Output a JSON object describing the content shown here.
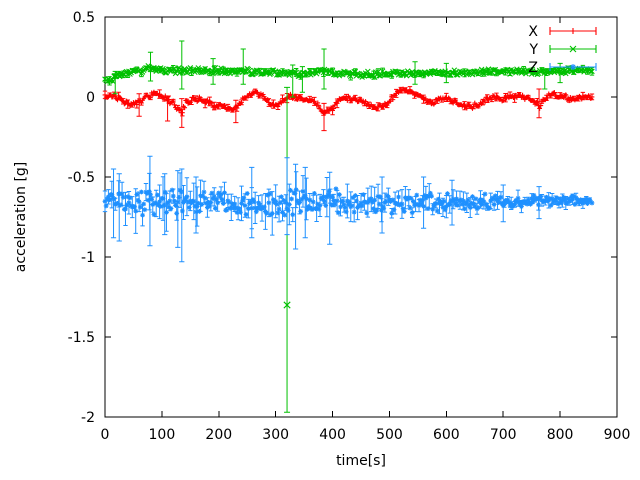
{
  "chart_data": {
    "type": "scatter",
    "title": "",
    "xlabel": "time[s]",
    "ylabel": "acceleration [g]",
    "xlim": [
      0,
      900
    ],
    "ylim": [
      -2,
      0.5
    ],
    "xticks": {
      "values": [
        0,
        100,
        200,
        300,
        400,
        500,
        600,
        700,
        800,
        900
      ],
      "labels": [
        "0",
        "100",
        "200",
        "300",
        "400",
        "500",
        "600",
        "700",
        "800",
        "900"
      ]
    },
    "yticks": {
      "values": [
        0.5,
        0,
        -0.5,
        -1,
        -1.5,
        -2
      ],
      "labels": [
        "0.5",
        "0",
        "-0.5",
        "-1",
        "-1.5",
        "-2"
      ]
    },
    "grid": false,
    "legend_position": "top-right-inside",
    "sample_step": 2,
    "t_end": 856,
    "series": [
      {
        "name": "X",
        "color": "#ff0000",
        "marker": "plus",
        "err_every": 4,
        "band": [
          [
            0,
            0.013
          ],
          [
            856,
            0.013
          ]
        ],
        "ebar": [
          [
            0,
            0.025
          ],
          [
            856,
            0.022
          ]
        ],
        "trend": [
          [
            0,
            0.0
          ],
          [
            15,
            0.01
          ],
          [
            30,
            -0.02
          ],
          [
            45,
            -0.05
          ],
          [
            60,
            -0.03
          ],
          [
            75,
            0.01
          ],
          [
            90,
            0.02
          ],
          [
            105,
            -0.01
          ],
          [
            120,
            -0.04
          ],
          [
            135,
            -0.1
          ],
          [
            142,
            -0.04
          ],
          [
            150,
            -0.02
          ],
          [
            165,
            -0.01
          ],
          [
            180,
            -0.03
          ],
          [
            195,
            -0.05
          ],
          [
            210,
            -0.06
          ],
          [
            225,
            -0.08
          ],
          [
            235,
            -0.05
          ],
          [
            245,
            -0.01
          ],
          [
            255,
            0.02
          ],
          [
            265,
            0.03
          ],
          [
            275,
            0.01
          ],
          [
            285,
            -0.03
          ],
          [
            295,
            -0.05
          ],
          [
            305,
            -0.04
          ],
          [
            315,
            -0.02
          ],
          [
            325,
            0.0
          ],
          [
            335,
            0.0
          ],
          [
            345,
            -0.01
          ],
          [
            355,
            -0.02
          ],
          [
            365,
            -0.02
          ],
          [
            375,
            -0.05
          ],
          [
            385,
            -0.11
          ],
          [
            392,
            -0.08
          ],
          [
            400,
            -0.08
          ],
          [
            410,
            -0.03
          ],
          [
            420,
            0.0
          ],
          [
            435,
            -0.01
          ],
          [
            450,
            -0.03
          ],
          [
            465,
            -0.06
          ],
          [
            480,
            -0.07
          ],
          [
            495,
            -0.05
          ],
          [
            505,
            -0.01
          ],
          [
            515,
            0.03
          ],
          [
            525,
            0.05
          ],
          [
            535,
            0.04
          ],
          [
            545,
            0.02
          ],
          [
            555,
            0.0
          ],
          [
            565,
            -0.03
          ],
          [
            575,
            -0.04
          ],
          [
            585,
            -0.02
          ],
          [
            600,
            -0.01
          ],
          [
            615,
            -0.03
          ],
          [
            630,
            -0.06
          ],
          [
            645,
            -0.06
          ],
          [
            660,
            -0.04
          ],
          [
            672,
            -0.01
          ],
          [
            685,
            0.0
          ],
          [
            700,
            -0.01
          ],
          [
            715,
            0.0
          ],
          [
            730,
            0.0
          ],
          [
            745,
            -0.01
          ],
          [
            758,
            -0.04
          ],
          [
            764,
            -0.06
          ],
          [
            770,
            -0.02
          ],
          [
            780,
            0.0
          ],
          [
            790,
            0.01
          ],
          [
            805,
            0.0
          ],
          [
            820,
            -0.01
          ],
          [
            835,
            0.0
          ],
          [
            856,
            -0.01
          ]
        ],
        "spikes": [
          [
            60,
            -0.12,
            0.02
          ],
          [
            110,
            -0.15,
            0.0
          ],
          [
            135,
            -0.19,
            -0.01
          ],
          [
            230,
            -0.16,
            -0.02
          ],
          [
            385,
            -0.21,
            -0.04
          ],
          [
            763,
            -0.13,
            0.05
          ]
        ],
        "outliers": []
      },
      {
        "name": "Y",
        "color": "#00c000",
        "marker": "cross",
        "err_every": 4,
        "band": [
          [
            0,
            0.013
          ],
          [
            856,
            0.013
          ]
        ],
        "ebar": [
          [
            0,
            0.022
          ],
          [
            856,
            0.02
          ]
        ],
        "trend": [
          [
            0,
            0.1
          ],
          [
            8,
            0.1
          ],
          [
            16,
            0.12
          ],
          [
            25,
            0.14
          ],
          [
            35,
            0.155
          ],
          [
            50,
            0.16
          ],
          [
            65,
            0.165
          ],
          [
            78,
            0.19
          ],
          [
            85,
            0.19
          ],
          [
            95,
            0.17
          ],
          [
            110,
            0.16
          ],
          [
            125,
            0.165
          ],
          [
            140,
            0.17
          ],
          [
            155,
            0.165
          ],
          [
            170,
            0.16
          ],
          [
            185,
            0.165
          ],
          [
            200,
            0.165
          ],
          [
            215,
            0.16
          ],
          [
            230,
            0.16
          ],
          [
            243,
            0.17
          ],
          [
            255,
            0.16
          ],
          [
            270,
            0.155
          ],
          [
            285,
            0.15
          ],
          [
            300,
            0.15
          ],
          [
            320,
            0.145
          ],
          [
            340,
            0.14
          ],
          [
            355,
            0.15
          ],
          [
            370,
            0.155
          ],
          [
            385,
            0.17
          ],
          [
            395,
            0.16
          ],
          [
            410,
            0.15
          ],
          [
            430,
            0.145
          ],
          [
            450,
            0.14
          ],
          [
            470,
            0.14
          ],
          [
            490,
            0.145
          ],
          [
            510,
            0.15
          ],
          [
            530,
            0.15
          ],
          [
            550,
            0.15
          ],
          [
            570,
            0.15
          ],
          [
            590,
            0.155
          ],
          [
            610,
            0.15
          ],
          [
            630,
            0.15
          ],
          [
            650,
            0.155
          ],
          [
            670,
            0.16
          ],
          [
            690,
            0.16
          ],
          [
            710,
            0.16
          ],
          [
            730,
            0.16
          ],
          [
            750,
            0.16
          ],
          [
            770,
            0.155
          ],
          [
            790,
            0.16
          ],
          [
            810,
            0.165
          ],
          [
            830,
            0.17
          ],
          [
            856,
            0.17
          ]
        ],
        "spikes": [
          [
            18,
            0.02,
            0.16
          ],
          [
            80,
            0.1,
            0.28
          ],
          [
            135,
            0.05,
            0.35
          ],
          [
            190,
            0.08,
            0.24
          ],
          [
            243,
            0.08,
            0.3
          ],
          [
            330,
            0.0,
            0.2
          ],
          [
            347,
            0.03,
            0.19
          ],
          [
            385,
            0.05,
            0.3
          ],
          [
            545,
            0.08,
            0.22
          ],
          [
            600,
            0.09,
            0.21
          ],
          [
            773,
            0.05,
            0.17
          ],
          [
            800,
            0.09,
            0.21
          ]
        ],
        "outliers": [
          {
            "t": 320,
            "v": -1.3,
            "lo": -1.97,
            "hi": 0.06
          }
        ]
      },
      {
        "name": "Z",
        "color": "#1e90ff",
        "marker": "star",
        "err_every": 3,
        "band": [
          [
            0,
            0.045
          ],
          [
            80,
            0.06
          ],
          [
            200,
            0.05
          ],
          [
            320,
            0.06
          ],
          [
            420,
            0.055
          ],
          [
            520,
            0.045
          ],
          [
            620,
            0.04
          ],
          [
            720,
            0.03
          ],
          [
            800,
            0.025
          ],
          [
            856,
            0.018
          ]
        ],
        "ebar": [
          [
            0,
            0.09
          ],
          [
            80,
            0.13
          ],
          [
            150,
            0.11
          ],
          [
            300,
            0.12
          ],
          [
            400,
            0.11
          ],
          [
            500,
            0.08
          ],
          [
            600,
            0.06
          ],
          [
            700,
            0.05
          ],
          [
            780,
            0.04
          ],
          [
            856,
            0.03
          ]
        ],
        "trend": [
          [
            0,
            -0.66
          ],
          [
            30,
            -0.665
          ],
          [
            60,
            -0.66
          ],
          [
            90,
            -0.66
          ],
          [
            120,
            -0.665
          ],
          [
            150,
            -0.66
          ],
          [
            180,
            -0.66
          ],
          [
            210,
            -0.66
          ],
          [
            240,
            -0.665
          ],
          [
            270,
            -0.66
          ],
          [
            300,
            -0.66
          ],
          [
            330,
            -0.665
          ],
          [
            360,
            -0.66
          ],
          [
            390,
            -0.655
          ],
          [
            420,
            -0.66
          ],
          [
            450,
            -0.66
          ],
          [
            480,
            -0.658
          ],
          [
            510,
            -0.66
          ],
          [
            540,
            -0.662
          ],
          [
            570,
            -0.66
          ],
          [
            600,
            -0.658
          ],
          [
            630,
            -0.655
          ],
          [
            660,
            -0.655
          ],
          [
            690,
            -0.652
          ],
          [
            720,
            -0.655
          ],
          [
            750,
            -0.655
          ],
          [
            780,
            -0.652
          ],
          [
            810,
            -0.65
          ],
          [
            856,
            -0.65
          ]
        ],
        "spikes": [
          [
            15,
            -0.88,
            -0.45
          ],
          [
            25,
            -0.9,
            -0.48
          ],
          [
            79,
            -0.93,
            -0.37
          ],
          [
            105,
            -0.86,
            -0.48
          ],
          [
            128,
            -0.94,
            -0.46
          ],
          [
            135,
            -1.03,
            -0.45
          ],
          [
            160,
            -0.85,
            -0.5
          ],
          [
            258,
            -0.88,
            -0.44
          ],
          [
            320,
            -0.86,
            -0.38
          ],
          [
            335,
            -0.95,
            -0.42
          ],
          [
            352,
            -0.88,
            -0.44
          ],
          [
            395,
            -0.92,
            -0.47
          ],
          [
            487,
            -0.85,
            -0.5
          ],
          [
            560,
            -0.82,
            -0.5
          ],
          [
            610,
            -0.8,
            -0.52
          ],
          [
            700,
            -0.78,
            -0.55
          ],
          [
            763,
            -0.76,
            -0.56
          ]
        ],
        "outliers": []
      }
    ]
  },
  "layout_labels": {
    "legend_entries": [
      "X",
      "Y",
      "Z"
    ]
  }
}
